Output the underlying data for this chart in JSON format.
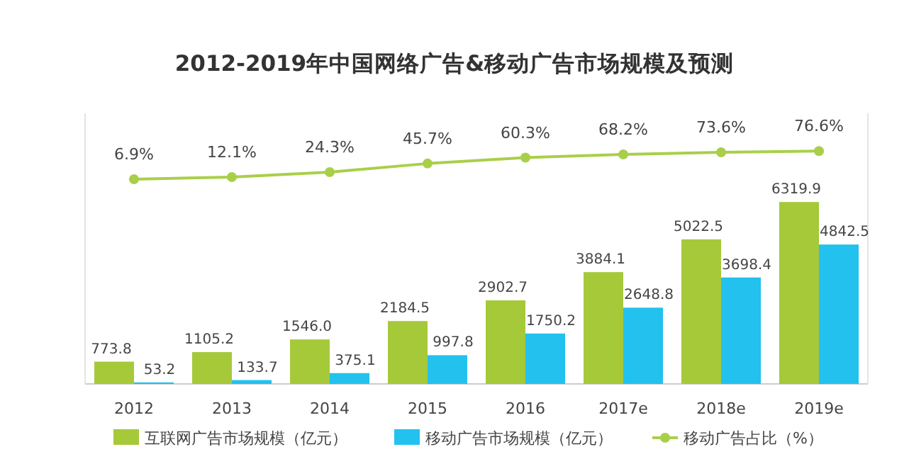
{
  "chart_data": {
    "type": "bar",
    "title": "2012-2019年中国网络广告&移动广告市场规模及预测",
    "categories": [
      "2012",
      "2013",
      "2014",
      "2015",
      "2016",
      "2017e",
      "2018e",
      "2019e"
    ],
    "series": [
      {
        "name": "互联网广告市场规模（亿元）",
        "color": "#a6c93a",
        "values": [
          773.8,
          1105.2,
          1546.0,
          2184.5,
          2902.7,
          3884.1,
          5022.5,
          6319.9
        ],
        "value_labels": [
          "773.8",
          "1105.2",
          "1546.0",
          "2184.5",
          "2902.7",
          "3884.1",
          "5022.5",
          "6319.9"
        ]
      },
      {
        "name": "移动广告市场规模（亿元）",
        "color": "#22c1ee",
        "values": [
          53.2,
          133.7,
          375.1,
          997.8,
          1750.2,
          2648.8,
          3698.4,
          4842.5
        ],
        "value_labels": [
          "53.2",
          "133.7",
          "375.1",
          "997.8",
          "1750.2",
          "2648.8",
          "3698.4",
          "4842.5"
        ]
      },
      {
        "name": "移动广告占比（%）",
        "type": "line",
        "axis": "y2",
        "color": "#a9cf4a",
        "values": [
          6.9,
          12.1,
          24.3,
          45.7,
          60.3,
          68.2,
          73.6,
          76.6
        ],
        "value_labels": [
          "6.9%",
          "12.1%",
          "24.3%",
          "45.7%",
          "60.3%",
          "68.2%",
          "73.6%",
          "76.6%"
        ]
      }
    ],
    "ylim": [
      0,
      9400
    ],
    "y2lim": [
      -500,
      170
    ],
    "tick_labels": "x",
    "marker": "circle",
    "legend": "bottom",
    "grid": false
  }
}
